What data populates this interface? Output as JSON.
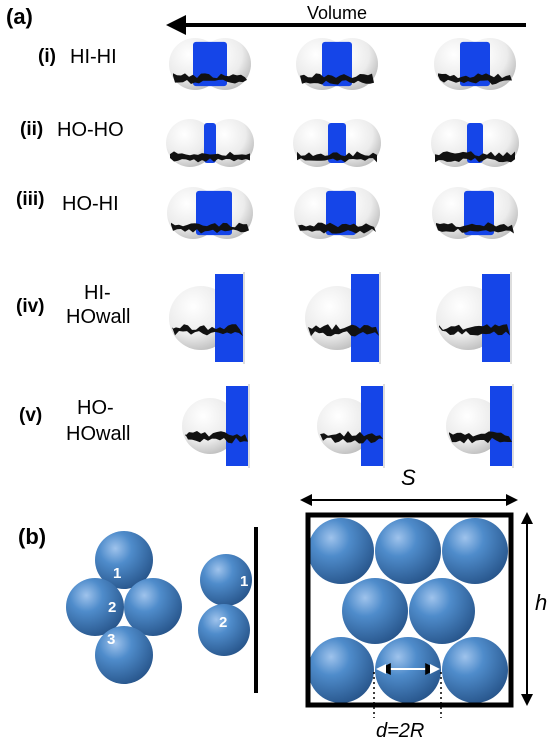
{
  "panel_a": {
    "label": "(a)",
    "arrow_label": "Volume",
    "rows": [
      {
        "roman": "(i)",
        "name": "HI-HI"
      },
      {
        "roman": "(ii)",
        "name": "HO-HO"
      },
      {
        "roman": "(iii)",
        "name": "HO-HI"
      },
      {
        "roman": "(iv)",
        "name_line1": "HI-",
        "name_line2": "HOwall"
      },
      {
        "roman": "(v)",
        "name_line1": "HO-",
        "name_line2": "HOwall"
      }
    ]
  },
  "panel_b": {
    "label": "(b)",
    "cluster_numbers": [
      "1",
      "2",
      "3"
    ],
    "wall_numbers": [
      "1",
      "2"
    ],
    "width_label": "S",
    "height_label": "h",
    "diameter_label": "d=2R"
  },
  "colors": {
    "bridge_blue": "#1545e8",
    "sphere_blue": "#3f78b5",
    "sphere_white": "#f2f2f2",
    "contact_line": "#111111"
  }
}
